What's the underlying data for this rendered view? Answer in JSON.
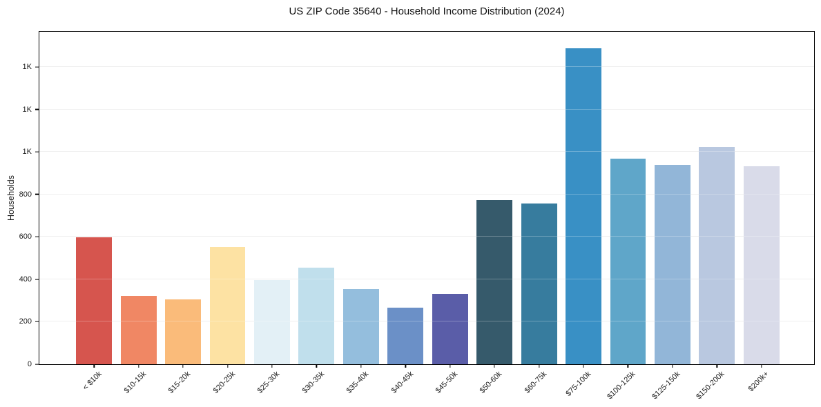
{
  "chart_data": {
    "type": "bar",
    "title": "US ZIP Code 35640 - Household Income Distribution (2024)",
    "xlabel": "",
    "ylabel": "Households",
    "categories": [
      "< $10k",
      "$10-15k",
      "$15-20k",
      "$20-25k",
      "$25-30k",
      "$30-35k",
      "$35-40k",
      "$40-45k",
      "$45-50k",
      "$50-60k",
      "$60-75k",
      "$75-100k",
      "$100-125k",
      "$125-150k",
      "$150-200k",
      "$200k+"
    ],
    "values": [
      597,
      321,
      304,
      552,
      398,
      455,
      353,
      267,
      330,
      774,
      757,
      1489,
      967,
      938,
      1022,
      934
    ],
    "bar_colors": [
      "#d6554e",
      "#f08764",
      "#fabb7a",
      "#fde2a3",
      "#e3f0f6",
      "#c0dfec",
      "#94bedd",
      "#6b90c7",
      "#5a5da8",
      "#365a6b",
      "#377c9e",
      "#3990c5",
      "#5fa6c9",
      "#92b6d8",
      "#b9c8e0",
      "#d9dbe9"
    ],
    "ylim": [
      0,
      1566
    ],
    "yticks": [
      0,
      200,
      400,
      600,
      800,
      1000,
      1200,
      1400
    ],
    "ytick_labels": [
      "0",
      "200",
      "400",
      "600",
      "800",
      "1K",
      "1K",
      "1K"
    ],
    "grid": "horizontal",
    "grid_over_bars": true,
    "legend": "none",
    "colors": {
      "gridline": "#e9e9e9",
      "gridline_over_bar": "rgba(255,255,255,0.28)",
      "axis_frame": "#000000",
      "tick": "#000000",
      "text": "#1c1c1c",
      "background": "#ffffff"
    }
  }
}
